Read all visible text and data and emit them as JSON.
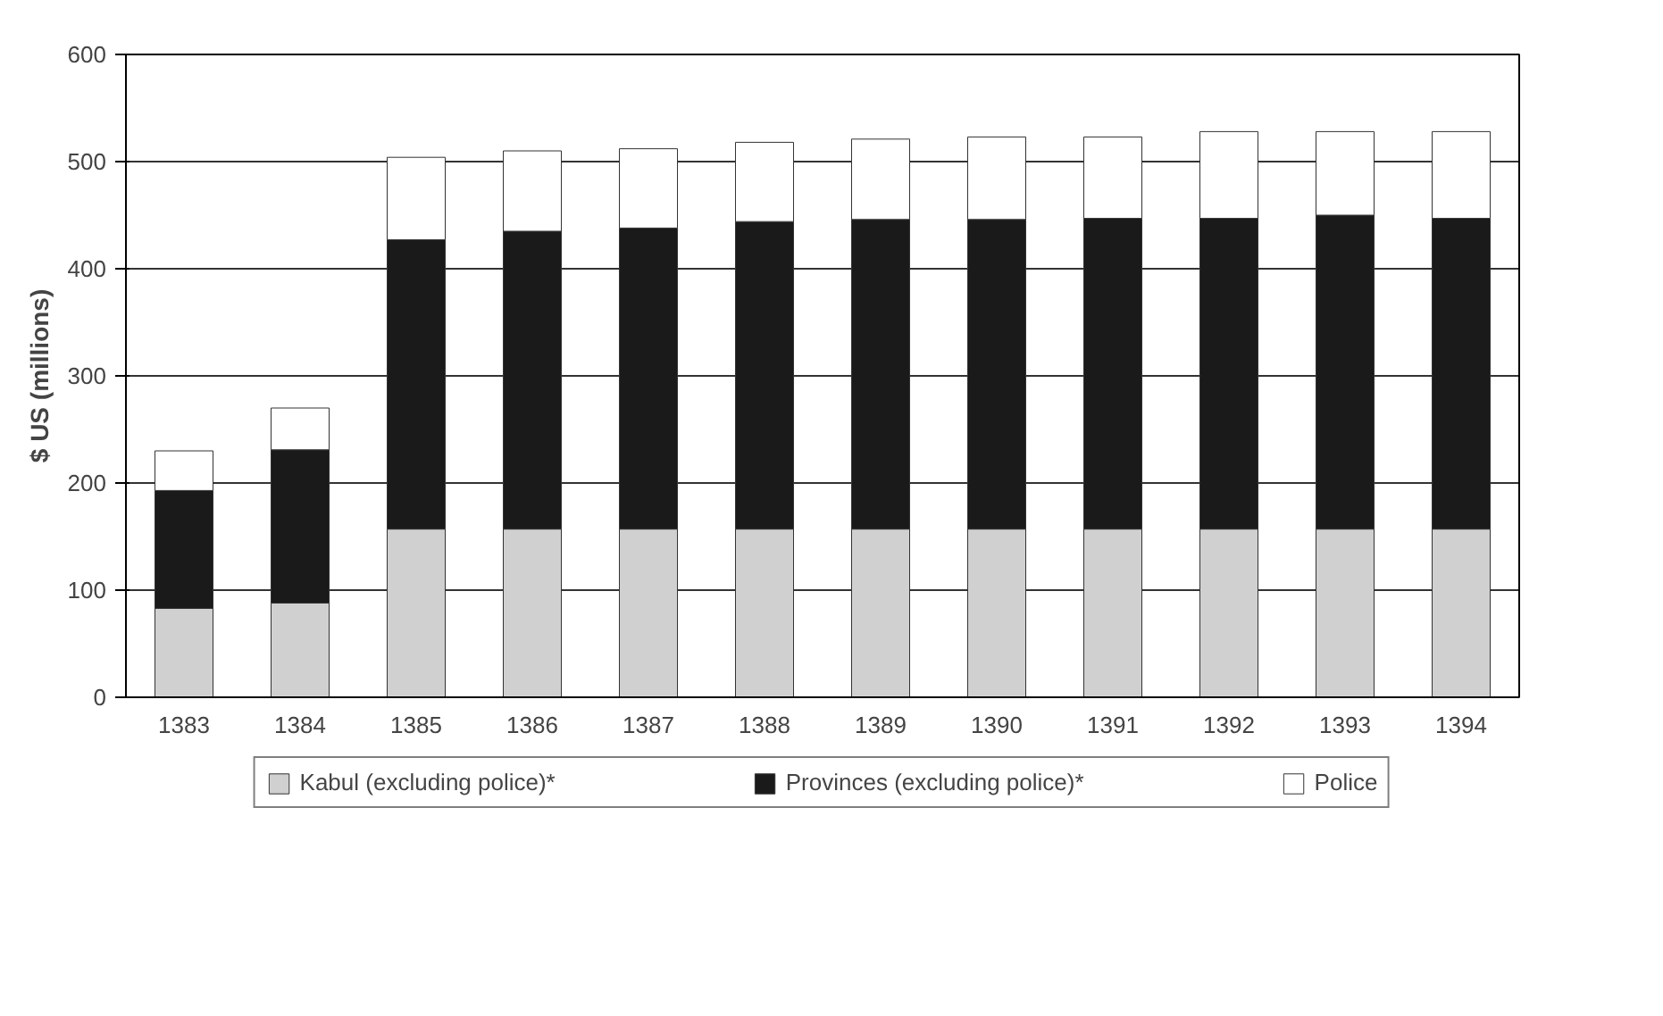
{
  "chart_data": {
    "type": "bar",
    "stacked": true,
    "ylabel": "$ US (millions)",
    "categories": [
      "1383",
      "1384",
      "1385",
      "1386",
      "1387",
      "1388",
      "1389",
      "1390",
      "1391",
      "1392",
      "1393",
      "1394"
    ],
    "series": [
      {
        "name": "Kabul (excluding police)*",
        "color": "#d0d0d0",
        "values": [
          83,
          88,
          157,
          157,
          157,
          157,
          157,
          157,
          157,
          157,
          157,
          157
        ]
      },
      {
        "name": "Provinces (excluding police)*",
        "color": "#1a1a1a",
        "values": [
          110,
          143,
          270,
          278,
          281,
          287,
          289,
          289,
          290,
          290,
          293,
          290
        ]
      },
      {
        "name": "Police",
        "color": "#ffffff",
        "values": [
          37,
          39,
          77,
          75,
          74,
          74,
          75,
          77,
          76,
          81,
          78,
          81
        ]
      }
    ],
    "ylim": [
      0,
      600
    ],
    "yticks": [
      0,
      100,
      200,
      300,
      400,
      500,
      600
    ],
    "grid": "y",
    "legend": "bottom"
  }
}
